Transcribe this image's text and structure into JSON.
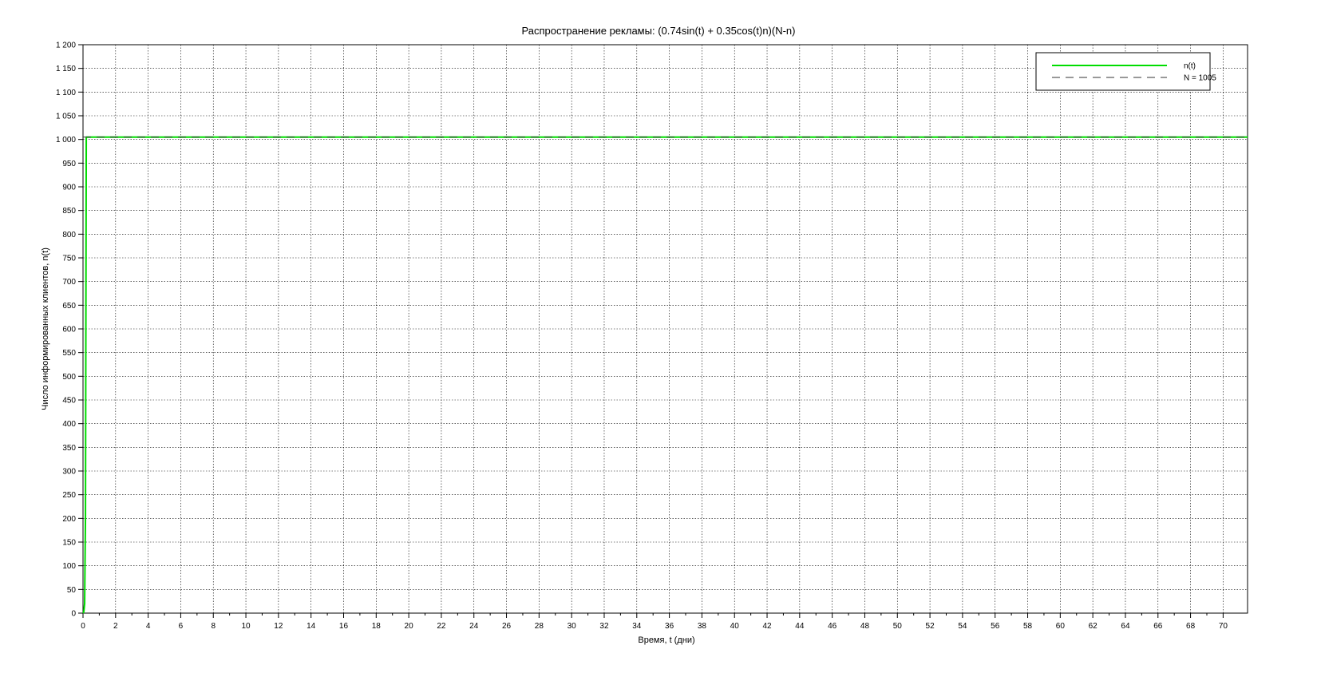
{
  "chart_data": {
    "type": "line",
    "title": "Распространение рекламы: (0.74sin(t) + 0.35cos(t)n)(N-n)",
    "xlabel": "Время, t (дни)",
    "ylabel": "Число информированных клиентов, n(t)",
    "xlim": [
      0,
      71.5
    ],
    "ylim": [
      0,
      1200
    ],
    "x_ticks": [
      0,
      2,
      4,
      6,
      8,
      10,
      12,
      14,
      16,
      18,
      20,
      22,
      24,
      26,
      28,
      30,
      32,
      34,
      36,
      38,
      40,
      42,
      44,
      46,
      48,
      50,
      52,
      54,
      56,
      58,
      60,
      62,
      64,
      66,
      68,
      70
    ],
    "y_ticks": [
      0,
      50,
      100,
      150,
      200,
      250,
      300,
      350,
      400,
      450,
      500,
      550,
      600,
      650,
      700,
      750,
      800,
      850,
      900,
      950,
      1000,
      1050,
      1100,
      1150,
      1200
    ],
    "y_tick_labels": [
      "0",
      "50",
      "100",
      "150",
      "200",
      "250",
      "300",
      "350",
      "400",
      "450",
      "500",
      "550",
      "600",
      "650",
      "700",
      "750",
      "800",
      "850",
      "900",
      "950",
      "1 000",
      "1 050",
      "1 100",
      "1 150",
      "1 200"
    ],
    "grid": true,
    "legend_position": "top-right",
    "series": [
      {
        "name": "n(t)",
        "color": "#00dd00",
        "style": "solid",
        "x": [
          0,
          0.02,
          0.05,
          0.1,
          0.15,
          0.2,
          71.5
        ],
        "y": [
          0,
          1,
          3,
          20,
          200,
          1005,
          1005
        ]
      },
      {
        "name": "N = 1005",
        "color": "#333333",
        "style": "dashed",
        "x": [
          0,
          71.5
        ],
        "y": [
          1005,
          1005
        ]
      }
    ]
  }
}
